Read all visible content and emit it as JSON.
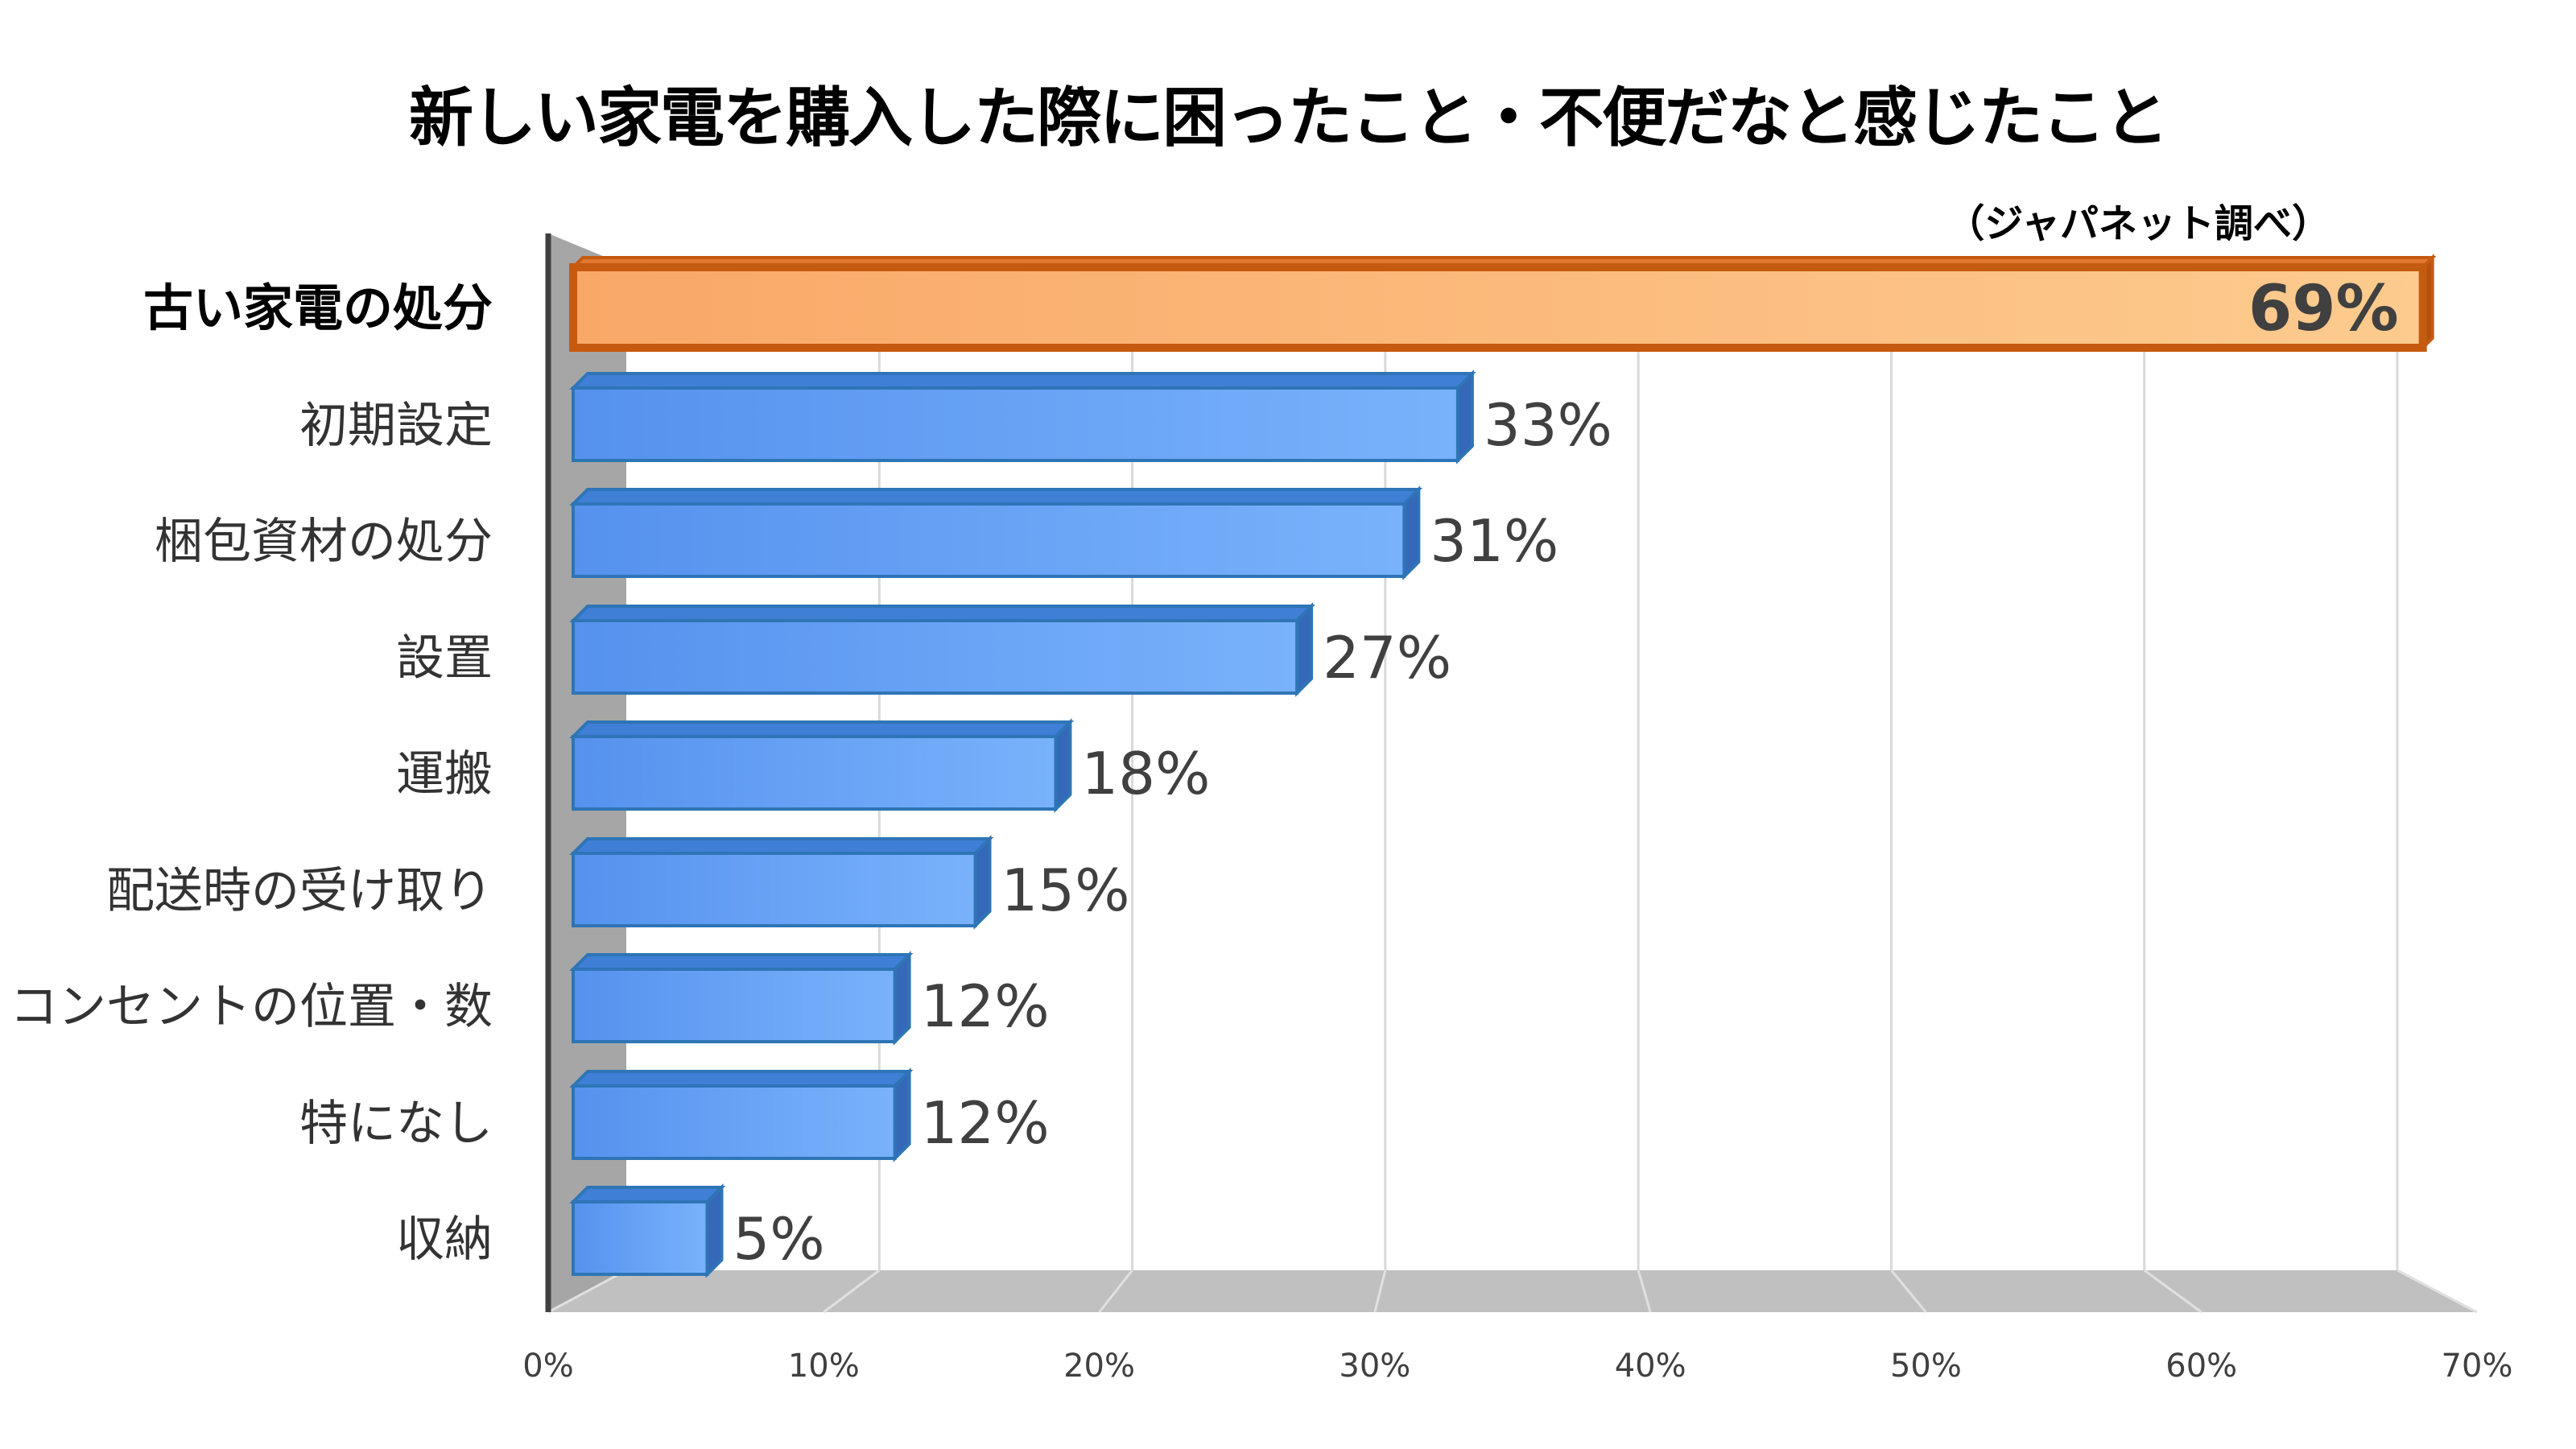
{
  "chart_data": {
    "type": "bar",
    "orientation": "horizontal",
    "title": "新しい家電を購入した際に困ったこと・不便だなと感じたこと",
    "source_note": "（ジャパネット調べ）",
    "categories": [
      "古い家電の処分",
      "初期設定",
      "梱包資材の処分",
      "設置",
      "運搬",
      "配送時の受け取り",
      "コンセントの位置・数",
      "特になし",
      "収納"
    ],
    "values": [
      69,
      33,
      31,
      27,
      18,
      15,
      12,
      12,
      5
    ],
    "value_labels": [
      "69%",
      "33%",
      "31%",
      "27%",
      "18%",
      "15%",
      "12%",
      "12%",
      "5%"
    ],
    "highlight_index": 0,
    "xlim": [
      0,
      70
    ],
    "xticks": [
      "0%",
      "10%",
      "20%",
      "30%",
      "40%",
      "50%",
      "60%",
      "70%"
    ],
    "grid": true,
    "colors": {
      "highlight": "#F4A460",
      "highlight_border": "#C55A11",
      "bar": "#5B9BF5",
      "bar_border": "#2E75B6",
      "floor": "#C0C0C0",
      "wall": "#A6A6A6"
    }
  }
}
